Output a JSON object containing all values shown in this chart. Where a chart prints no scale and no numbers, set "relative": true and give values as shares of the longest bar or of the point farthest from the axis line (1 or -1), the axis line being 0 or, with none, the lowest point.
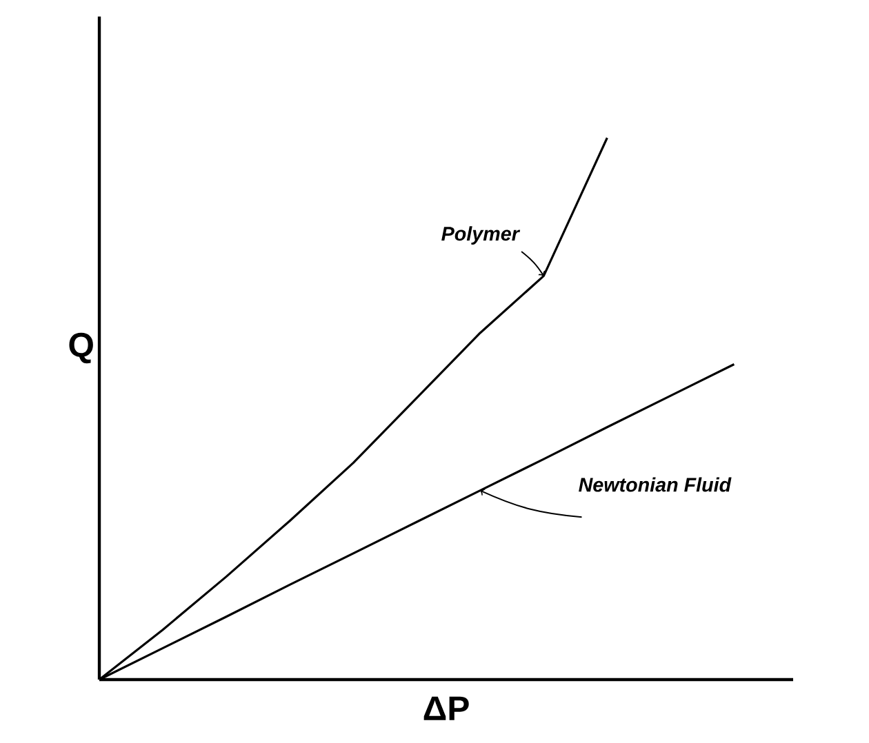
{
  "chart_data": {
    "type": "line",
    "xlabel": "ΔP",
    "ylabel": "Q",
    "relative": true,
    "legend": false,
    "marker": "none",
    "line_style": "solid",
    "categories": [
      null,
      null,
      null,
      null,
      null,
      null,
      null,
      null,
      null,
      null,
      null
    ],
    "series": [
      {
        "name": "Polymer",
        "color": "#000000",
        "values": [
          0,
          0.092,
          0.19,
          0.293,
          0.4,
          0.52,
          0.64,
          0.745,
          1.0,
          null,
          null
        ]
      },
      {
        "name": "Newtonian Fluid",
        "color": "#000000",
        "values": [
          0,
          0.058,
          0.116,
          0.175,
          0.233,
          0.291,
          0.349,
          0.407,
          0.466,
          0.524,
          0.582
        ]
      }
    ]
  }
}
